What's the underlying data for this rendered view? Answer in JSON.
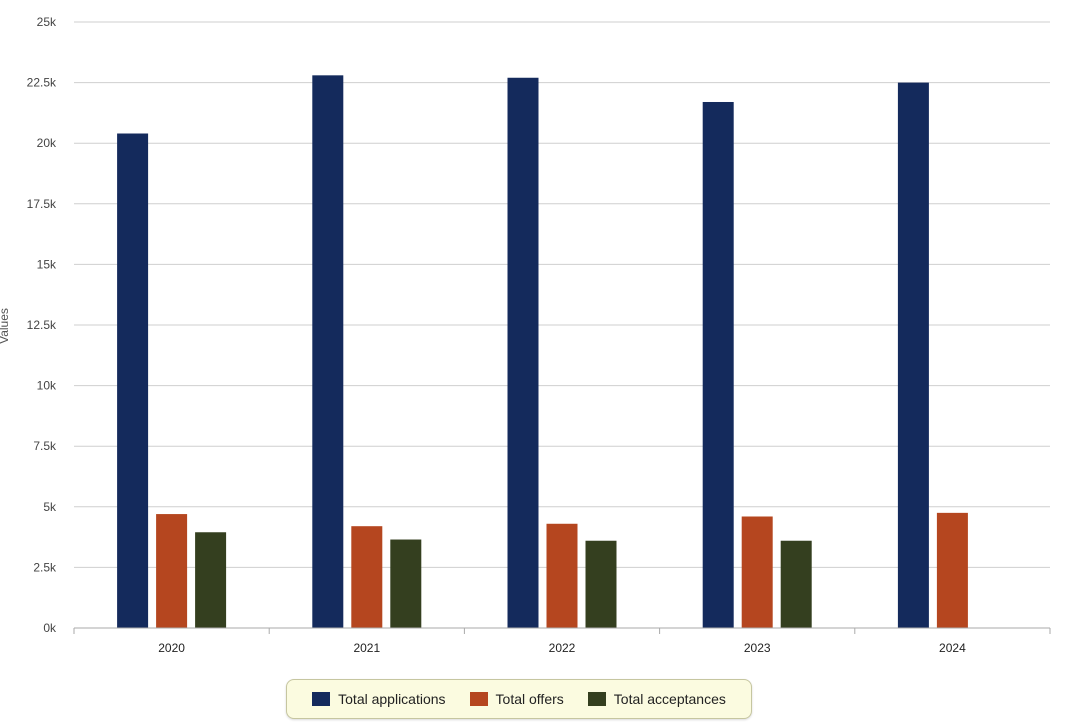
{
  "chart_data": {
    "type": "bar",
    "ylabel": "Values",
    "ylim": [
      0,
      25000
    ],
    "y_ticks": [
      0,
      2500,
      5000,
      7500,
      10000,
      12500,
      15000,
      17500,
      20000,
      22500,
      25000
    ],
    "y_tick_labels": [
      "0k",
      "2.5k",
      "5k",
      "7.5k",
      "10k",
      "12.5k",
      "15k",
      "17.5k",
      "20k",
      "22.5k",
      "25k"
    ],
    "grid": true,
    "legend_position": "bottom",
    "categories": [
      "2020",
      "2021",
      "2022",
      "2023",
      "2024"
    ],
    "series": [
      {
        "name": "Total applications",
        "color": "#142a5c",
        "values": [
          20400,
          22800,
          22700,
          21700,
          22500
        ]
      },
      {
        "name": "Total offers",
        "color": "#b5461f",
        "values": [
          4700,
          4200,
          4300,
          4600,
          4750
        ]
      },
      {
        "name": "Total acceptances",
        "color": "#343f1f",
        "values": [
          3950,
          3650,
          3600,
          3600,
          null
        ]
      }
    ]
  }
}
